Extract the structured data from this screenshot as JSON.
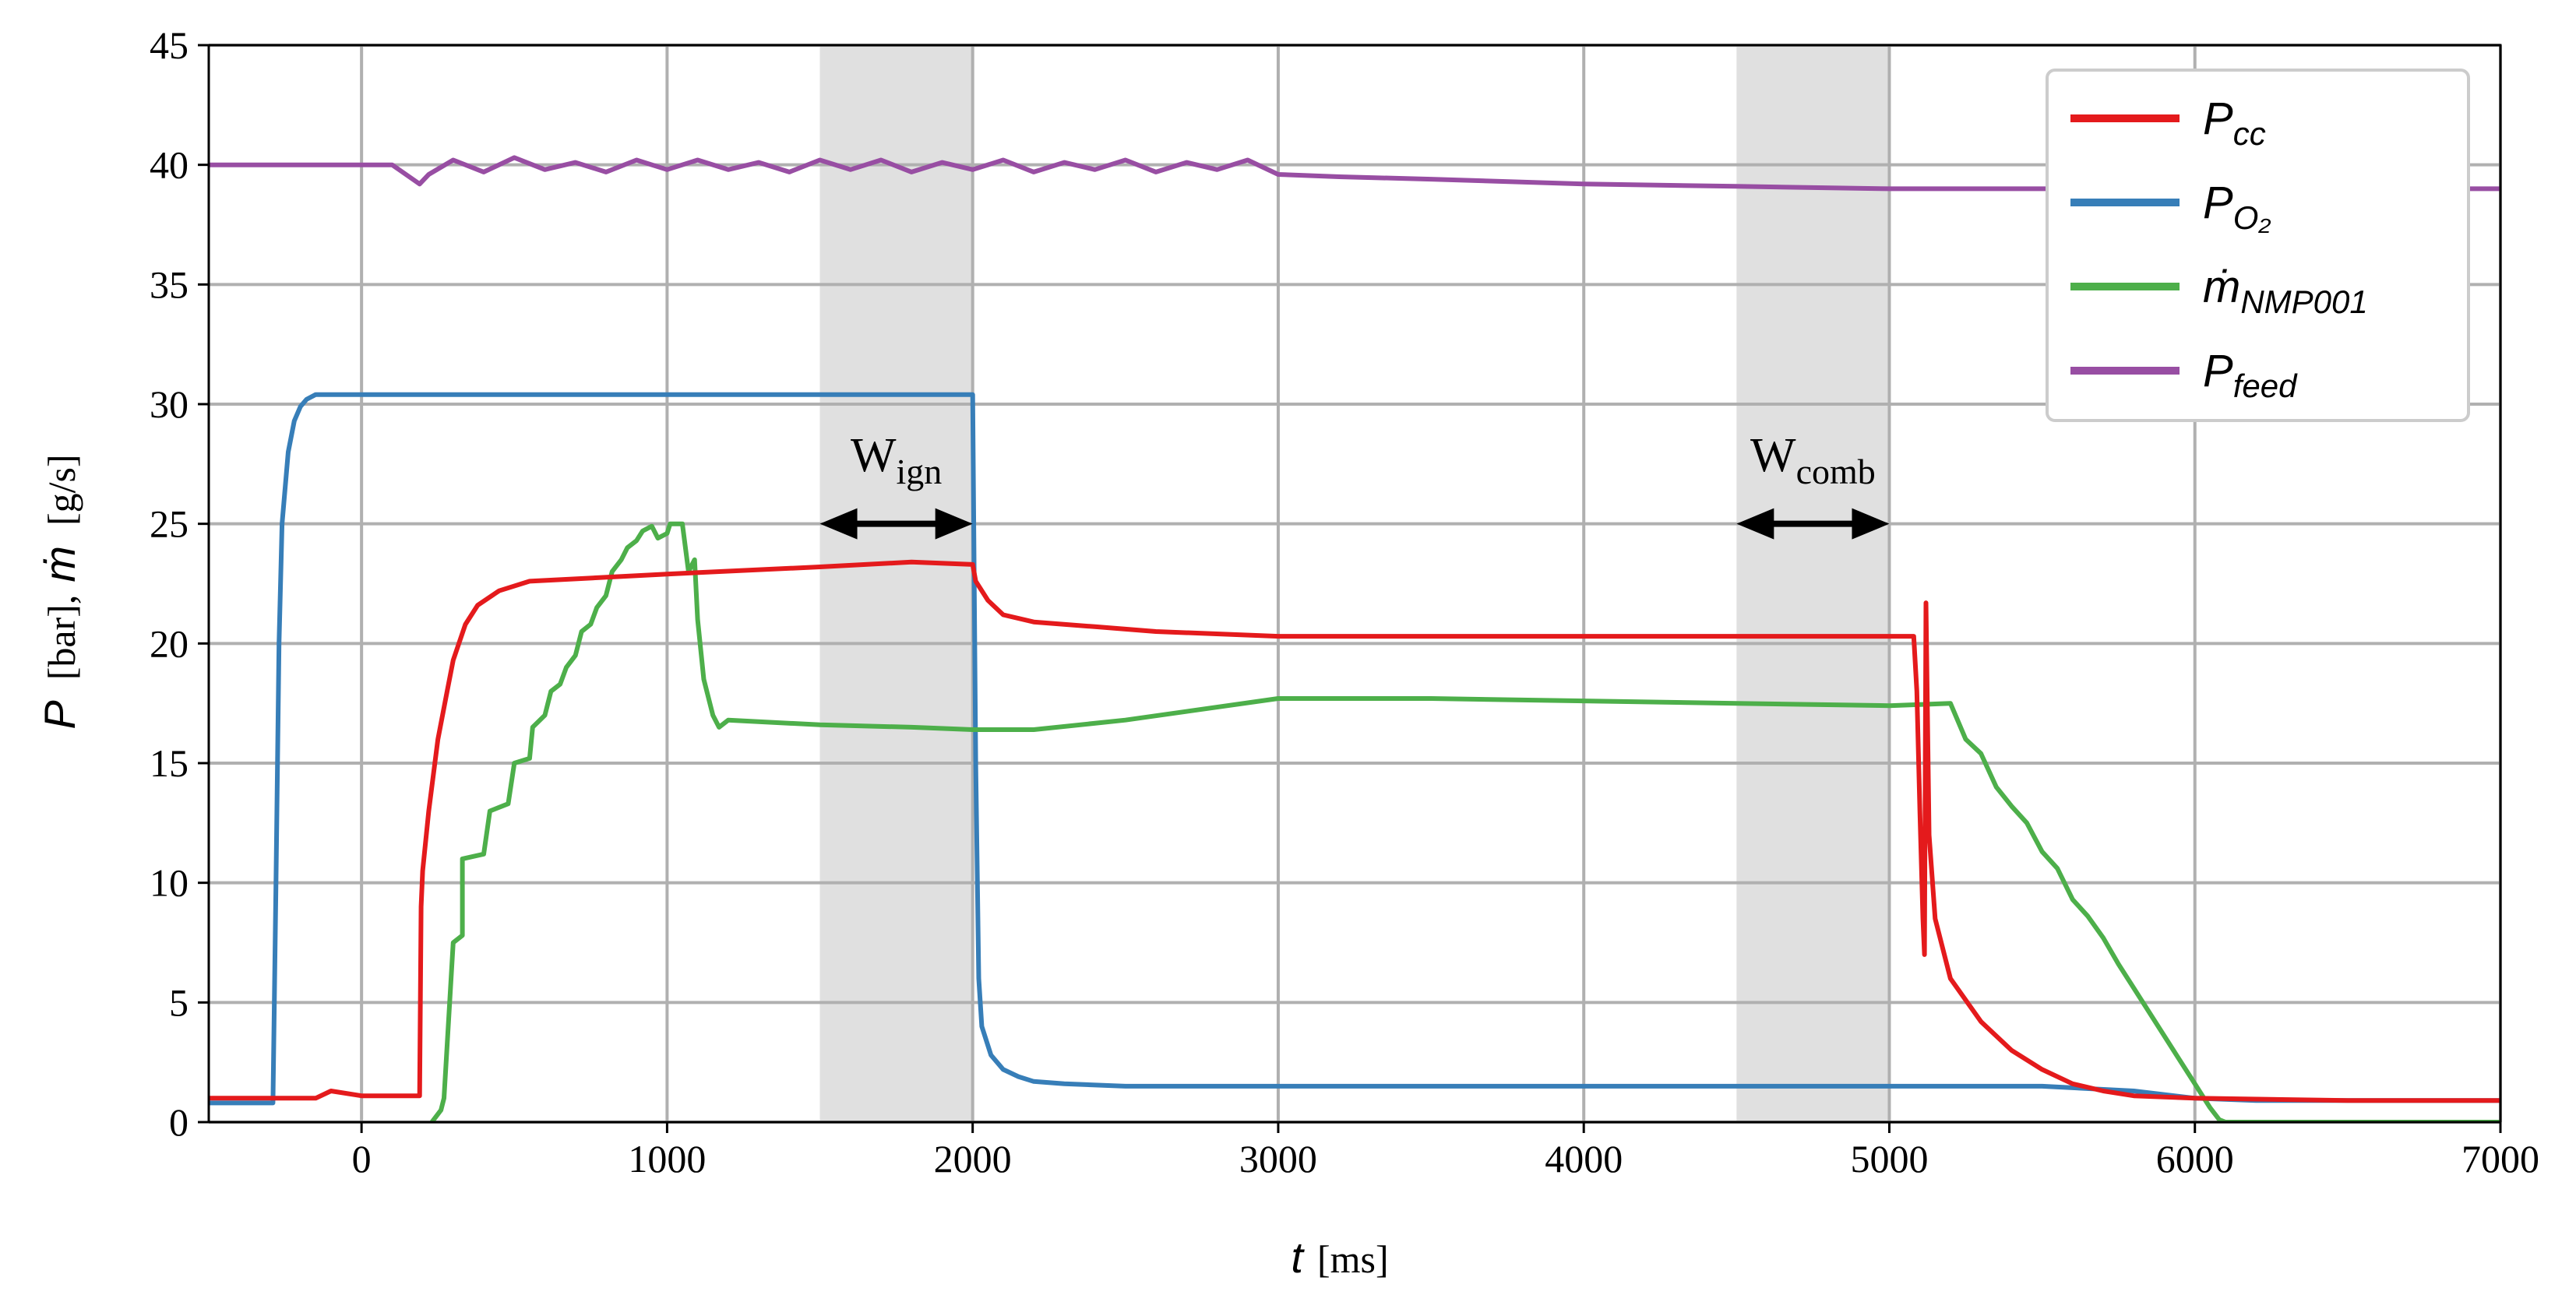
{
  "chart_data": {
    "type": "line",
    "title": "",
    "xlabel": {
      "symbol": "t",
      "unit": "[ms]"
    },
    "ylabel": {
      "sym1": "P",
      "unit1": "[bar],",
      "sym2": "ṁ",
      "unit2": "[g/s]"
    },
    "xlim": [
      -500,
      7000
    ],
    "ylim": [
      0,
      45
    ],
    "x_ticks": [
      0,
      1000,
      2000,
      3000,
      4000,
      5000,
      6000,
      7000
    ],
    "y_ticks": [
      0,
      5,
      10,
      15,
      20,
      25,
      30,
      35,
      40,
      45
    ],
    "grid": true,
    "legend_position": "top-right",
    "shaded_regions": [
      {
        "name": "ign",
        "label_main": "W",
        "label_sub": "ign",
        "x_start": 1500,
        "x_end": 2000,
        "label_y": 27.2,
        "arrow_y": 25.0
      },
      {
        "name": "comb",
        "label_main": "W",
        "label_sub": "comb",
        "x_start": 4500,
        "x_end": 5000,
        "label_y": 27.2,
        "arrow_y": 25.0
      }
    ],
    "series": [
      {
        "name": "P_feed",
        "legend_main": "P",
        "legend_sub": "feed",
        "color": "#984ea3",
        "x": [
          -500,
          100,
          190,
          220,
          300,
          400,
          500,
          600,
          700,
          800,
          900,
          1000,
          1100,
          1200,
          1300,
          1400,
          1500,
          1600,
          1700,
          1800,
          1900,
          2000,
          2100,
          2200,
          2300,
          2400,
          2500,
          2600,
          2700,
          2800,
          2900,
          3000,
          3200,
          3500,
          4000,
          4500,
          5000,
          5500,
          6000,
          6500,
          7000
        ],
        "y": [
          40.0,
          40.0,
          39.2,
          39.6,
          40.2,
          39.7,
          40.3,
          39.8,
          40.1,
          39.7,
          40.2,
          39.8,
          40.2,
          39.8,
          40.1,
          39.7,
          40.2,
          39.8,
          40.2,
          39.7,
          40.1,
          39.8,
          40.2,
          39.7,
          40.1,
          39.8,
          40.2,
          39.7,
          40.1,
          39.8,
          40.2,
          39.6,
          39.5,
          39.4,
          39.2,
          39.1,
          39.0,
          39.0,
          39.0,
          39.0,
          39.0
        ]
      },
      {
        "name": "P_O2",
        "legend_main": "P",
        "legend_sub": "O₂",
        "color": "#377eb8",
        "x": [
          -500,
          -290,
          -280,
          -270,
          -260,
          -240,
          -220,
          -200,
          -180,
          -150,
          -100,
          0,
          1000,
          1500,
          2000,
          2010,
          2020,
          2030,
          2060,
          2100,
          2150,
          2200,
          2300,
          2500,
          3000,
          4000,
          5000,
          5500,
          5800,
          6000,
          6200,
          6500,
          7000
        ],
        "y": [
          0.8,
          0.8,
          10.0,
          20.0,
          25.0,
          28.0,
          29.3,
          29.9,
          30.2,
          30.4,
          30.4,
          30.4,
          30.4,
          30.4,
          30.4,
          15.0,
          6.0,
          4.0,
          2.8,
          2.2,
          1.9,
          1.7,
          1.6,
          1.5,
          1.5,
          1.5,
          1.5,
          1.5,
          1.3,
          1.0,
          0.9,
          0.9,
          0.9
        ]
      },
      {
        "name": "mdot_NMP001",
        "legend_main": "ṁ",
        "legend_sub": "NMP001",
        "color": "#4daf4a",
        "x": [
          -500,
          200,
          230,
          260,
          270,
          300,
          330,
          330,
          400,
          420,
          480,
          500,
          550,
          560,
          600,
          620,
          650,
          670,
          700,
          720,
          750,
          770,
          800,
          820,
          850,
          870,
          900,
          920,
          950,
          970,
          1000,
          1010,
          1050,
          1070,
          1090,
          1100,
          1120,
          1150,
          1170,
          1200,
          1500,
          1800,
          2000,
          2200,
          2500,
          3000,
          3500,
          4000,
          4500,
          5000,
          5200,
          5250,
          5300,
          5350,
          5400,
          5450,
          5500,
          5550,
          5600,
          5650,
          5700,
          5750,
          5800,
          5850,
          5900,
          5950,
          6000,
          6050,
          6080,
          6100,
          6500,
          7000
        ],
        "y": [
          null,
          null,
          0,
          0.5,
          1.0,
          7.5,
          7.8,
          11.0,
          11.2,
          13.0,
          13.3,
          15.0,
          15.2,
          16.5,
          17.0,
          18.0,
          18.3,
          19.0,
          19.5,
          20.5,
          20.8,
          21.5,
          22.0,
          23.0,
          23.5,
          24.0,
          24.3,
          24.7,
          24.9,
          24.4,
          24.6,
          25.0,
          25.0,
          23.0,
          23.5,
          21.0,
          18.5,
          17.0,
          16.5,
          16.8,
          16.6,
          16.5,
          16.4,
          16.4,
          16.8,
          17.7,
          17.7,
          17.6,
          17.5,
          17.4,
          17.5,
          16.0,
          15.4,
          14.0,
          13.2,
          12.5,
          11.3,
          10.6,
          9.3,
          8.6,
          7.7,
          6.6,
          5.6,
          4.6,
          3.6,
          2.6,
          1.6,
          0.6,
          0.1,
          0,
          0,
          0
        ]
      },
      {
        "name": "P_cc",
        "legend_main": "P",
        "legend_sub": "cc",
        "color": "#e41a1c",
        "x": [
          -500,
          -150,
          -100,
          0,
          190,
          195,
          200,
          220,
          250,
          280,
          300,
          340,
          380,
          450,
          550,
          700,
          1000,
          1500,
          1800,
          2000,
          2010,
          2050,
          2100,
          2200,
          2400,
          2600,
          3000,
          3500,
          4000,
          4500,
          5000,
          5080,
          5090,
          5100,
          5110,
          5115,
          5120,
          5130,
          5150,
          5200,
          5300,
          5400,
          5500,
          5600,
          5700,
          5800,
          6000,
          6500,
          7000
        ],
        "y": [
          1.0,
          1.0,
          1.3,
          1.1,
          1.1,
          9.0,
          10.5,
          13.0,
          16.0,
          18.0,
          19.3,
          20.8,
          21.6,
          22.2,
          22.6,
          22.7,
          22.9,
          23.2,
          23.4,
          23.3,
          22.6,
          21.8,
          21.2,
          20.9,
          20.7,
          20.5,
          20.3,
          20.3,
          20.3,
          20.3,
          20.3,
          20.3,
          18.0,
          13.0,
          8.5,
          7.0,
          21.7,
          12.0,
          8.5,
          6.0,
          4.2,
          3.0,
          2.2,
          1.6,
          1.3,
          1.1,
          1.0,
          0.9,
          0.9
        ]
      }
    ]
  }
}
